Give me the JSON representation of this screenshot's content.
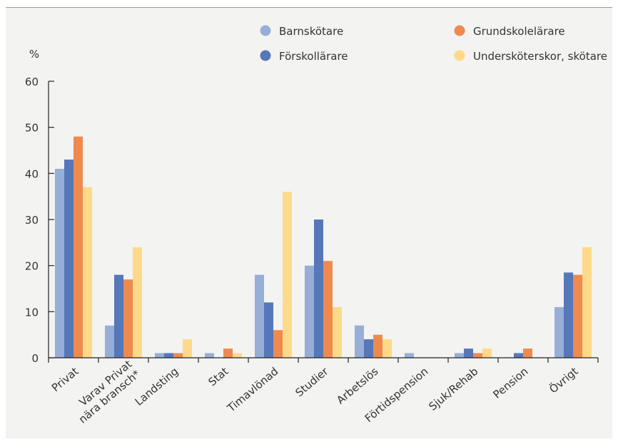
{
  "chart_data": {
    "type": "bar",
    "title": "",
    "xlabel": "",
    "ylabel": "",
    "unit_label": "%",
    "ylim": [
      0,
      60
    ],
    "yticks": [
      0,
      10,
      20,
      30,
      40,
      50,
      60
    ],
    "grid": false,
    "legend_position": "top-right",
    "categories": [
      "Privat",
      "Varav Privat\nnära bransch*",
      "Landsting",
      "Stat",
      "Timavlönad",
      "Studier",
      "Arbetslös",
      "Förtidspension",
      "Sjuk/Rehab",
      "Pension",
      "Övrigt"
    ],
    "series": [
      {
        "name": "Barnskötare",
        "color": "#97aed8",
        "values": [
          41,
          7,
          1,
          1,
          18,
          20,
          7,
          1,
          1,
          0,
          11
        ]
      },
      {
        "name": "Förskollärare",
        "color": "#5677b8",
        "values": [
          43,
          18,
          1,
          0,
          12,
          30,
          4,
          0,
          2,
          1,
          18.5
        ]
      },
      {
        "name": "Grundskolelärare",
        "color": "#ee8a4e",
        "values": [
          48,
          17,
          1,
          2,
          6,
          21,
          5,
          0,
          1,
          2,
          18
        ]
      },
      {
        "name": "Undersköterskor, skötare",
        "color": "#fdd98a",
        "values": [
          37,
          24,
          4,
          1,
          36,
          11,
          4,
          0,
          2,
          0,
          24
        ]
      }
    ]
  }
}
